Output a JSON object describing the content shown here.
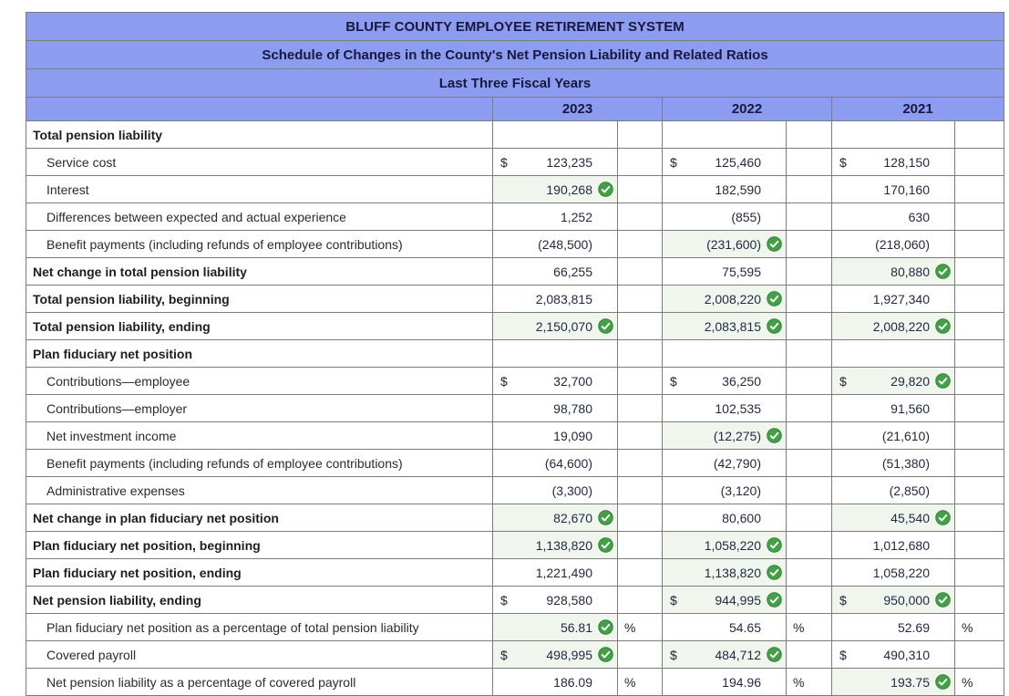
{
  "titles": [
    "BLUFF COUNTY EMPLOYEE RETIREMENT SYSTEM",
    "Schedule of Changes in the County's Net Pension Liability and Related Ratios",
    "Last Three Fiscal Years"
  ],
  "years": [
    "2023",
    "2022",
    "2021"
  ],
  "colors": {
    "header_bg": "#8c9cf0",
    "check_green": "#43a047",
    "checked_cell_bg": "#f0f6ee",
    "grid_border": "#7c7c7c"
  },
  "icons": {
    "correct": "green-circle-check-icon"
  },
  "rows": [
    {
      "label": "Total pension liability",
      "style": "section",
      "cells": [
        {},
        {},
        {}
      ]
    },
    {
      "label": "Service cost",
      "style": "detail",
      "cells": [
        {
          "prefix": "$",
          "value": "123,235"
        },
        {
          "prefix": "$",
          "value": "125,460"
        },
        {
          "prefix": "$",
          "value": "128,150"
        }
      ]
    },
    {
      "label": "Interest",
      "style": "detail",
      "cells": [
        {
          "value": "190,268",
          "check": true
        },
        {
          "value": "182,590"
        },
        {
          "value": "170,160"
        }
      ]
    },
    {
      "label": "Differences between expected and actual experience",
      "style": "detail",
      "cells": [
        {
          "value": "1,252"
        },
        {
          "value": "(855)"
        },
        {
          "value": "630"
        }
      ]
    },
    {
      "label": "Benefit payments (including refunds of employee contributions)",
      "style": "detail",
      "cells": [
        {
          "value": "(248,500)"
        },
        {
          "value": "(231,600)",
          "check": true
        },
        {
          "value": "(218,060)"
        }
      ]
    },
    {
      "label": "Net change in total pension liability",
      "style": "total",
      "cells": [
        {
          "value": "66,255"
        },
        {
          "value": "75,595"
        },
        {
          "value": "80,880",
          "check": true
        }
      ]
    },
    {
      "label": "Total pension liability, beginning",
      "style": "total",
      "cells": [
        {
          "value": "2,083,815"
        },
        {
          "value": "2,008,220",
          "check": true
        },
        {
          "value": "1,927,340"
        }
      ]
    },
    {
      "label": "Total pension liability, ending",
      "style": "total",
      "cells": [
        {
          "value": "2,150,070",
          "check": true
        },
        {
          "value": "2,083,815",
          "check": true
        },
        {
          "value": "2,008,220",
          "check": true
        }
      ]
    },
    {
      "label": "Plan fiduciary net position",
      "style": "section",
      "cells": [
        {},
        {},
        {}
      ]
    },
    {
      "label": "Contributions—employee",
      "style": "detail",
      "cells": [
        {
          "prefix": "$",
          "value": "32,700"
        },
        {
          "prefix": "$",
          "value": "36,250"
        },
        {
          "prefix": "$",
          "value": "29,820",
          "check": true
        }
      ]
    },
    {
      "label": "Contributions—employer",
      "style": "detail",
      "cells": [
        {
          "value": "98,780"
        },
        {
          "value": "102,535"
        },
        {
          "value": "91,560"
        }
      ]
    },
    {
      "label": "Net investment income",
      "style": "detail",
      "cells": [
        {
          "value": "19,090"
        },
        {
          "value": "(12,275)",
          "check": true
        },
        {
          "value": "(21,610)"
        }
      ]
    },
    {
      "label": "Benefit payments (including refunds of employee contributions)",
      "style": "detail",
      "cells": [
        {
          "value": "(64,600)"
        },
        {
          "value": "(42,790)"
        },
        {
          "value": "(51,380)"
        }
      ]
    },
    {
      "label": "Administrative expenses",
      "style": "detail",
      "cells": [
        {
          "value": "(3,300)"
        },
        {
          "value": "(3,120)"
        },
        {
          "value": "(2,850)"
        }
      ]
    },
    {
      "label": "Net change in plan fiduciary net position",
      "style": "total",
      "cells": [
        {
          "value": "82,670",
          "check": true
        },
        {
          "value": "80,600"
        },
        {
          "value": "45,540",
          "check": true
        }
      ]
    },
    {
      "label": "Plan fiduciary net position, beginning",
      "style": "total",
      "cells": [
        {
          "value": "1,138,820",
          "check": true
        },
        {
          "value": "1,058,220",
          "check": true
        },
        {
          "value": "1,012,680"
        }
      ]
    },
    {
      "label": "Plan fiduciary net position, ending",
      "style": "total",
      "cells": [
        {
          "value": "1,221,490"
        },
        {
          "value": "1,138,820",
          "check": true
        },
        {
          "value": "1,058,220"
        }
      ]
    },
    {
      "label": "Net pension liability, ending",
      "style": "total",
      "cells": [
        {
          "prefix": "$",
          "value": "928,580"
        },
        {
          "prefix": "$",
          "value": "944,995",
          "check": true
        },
        {
          "prefix": "$",
          "value": "950,000",
          "check": true
        }
      ]
    },
    {
      "label": "Plan fiduciary net position as a percentage of total pension liability",
      "style": "detail",
      "cells": [
        {
          "value": "56.81",
          "check": true,
          "suffix": "%"
        },
        {
          "value": "54.65",
          "suffix": "%"
        },
        {
          "value": "52.69",
          "suffix": "%"
        }
      ]
    },
    {
      "label": "Covered payroll",
      "style": "detail",
      "cells": [
        {
          "prefix": "$",
          "value": "498,995",
          "check": true
        },
        {
          "prefix": "$",
          "value": "484,712",
          "check": true
        },
        {
          "prefix": "$",
          "value": "490,310"
        }
      ]
    },
    {
      "label": "Net pension liability as a percentage of covered payroll",
      "style": "detail",
      "cells": [
        {
          "value": "186.09",
          "suffix": "%"
        },
        {
          "value": "194.96",
          "suffix": "%"
        },
        {
          "value": "193.75",
          "check": true,
          "suffix": "%"
        }
      ]
    }
  ]
}
